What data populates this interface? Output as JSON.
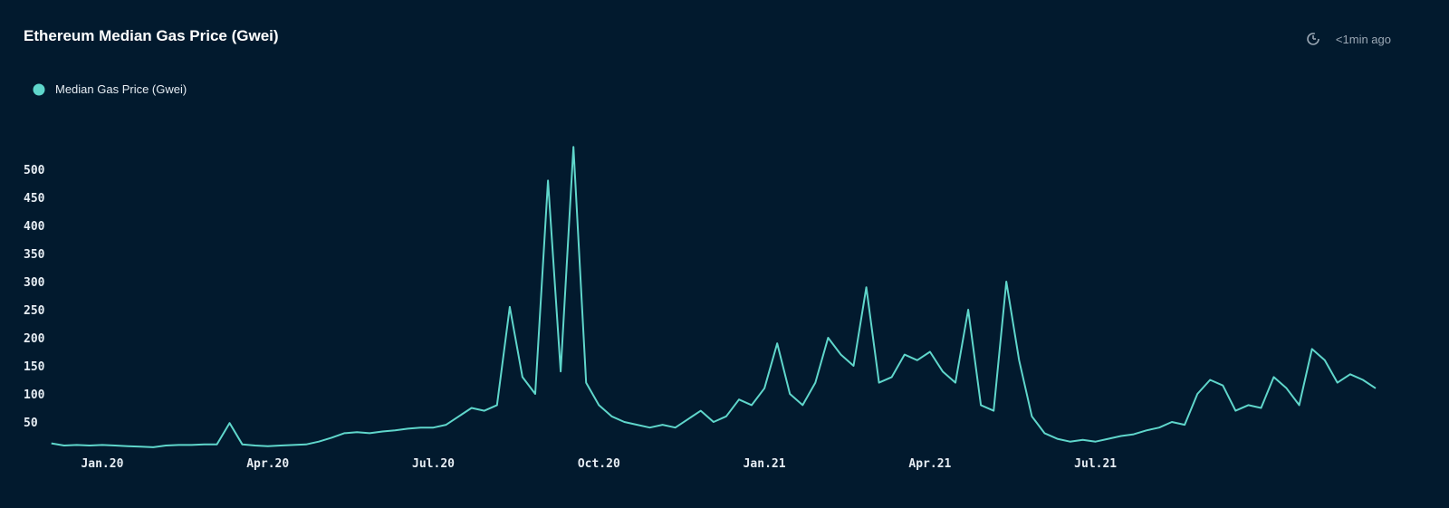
{
  "status": "<1min ago",
  "chart_data": {
    "type": "line",
    "title": "Ethereum Median Gas Price (Gwei)",
    "categories": [
      null,
      null,
      null,
      null,
      "Jan.20",
      null,
      null,
      null,
      null,
      null,
      null,
      null,
      null,
      null,
      null,
      null,
      null,
      "Apr.20",
      null,
      null,
      null,
      null,
      null,
      null,
      null,
      null,
      null,
      null,
      null,
      null,
      "Jul.20",
      null,
      null,
      null,
      null,
      null,
      null,
      null,
      null,
      null,
      null,
      null,
      null,
      "Oct.20",
      null,
      null,
      null,
      null,
      null,
      null,
      null,
      null,
      null,
      null,
      null,
      null,
      "Jan.21",
      null,
      null,
      null,
      null,
      null,
      null,
      null,
      null,
      null,
      null,
      null,
      null,
      "Apr.21",
      null,
      null,
      null,
      null,
      null,
      null,
      null,
      null,
      null,
      null,
      null,
      null,
      "Jul.21",
      null,
      null,
      null,
      null,
      null,
      null,
      null,
      null,
      null,
      null,
      null,
      null,
      null,
      null,
      null,
      null,
      null,
      null,
      null,
      null,
      null,
      null
    ],
    "series": [
      {
        "name": "Median Gas Price (Gwei)",
        "color": "#5fd6cb",
        "values": [
          12,
          8,
          9,
          8,
          9,
          8,
          7,
          6,
          5,
          8,
          9,
          9,
          10,
          10,
          48,
          10,
          8,
          7,
          8,
          9,
          10,
          15,
          22,
          30,
          32,
          30,
          33,
          35,
          38,
          40,
          40,
          45,
          60,
          75,
          70,
          80,
          255,
          130,
          100,
          480,
          140,
          540,
          120,
          80,
          60,
          50,
          45,
          40,
          45,
          40,
          55,
          70,
          50,
          60,
          90,
          80,
          110,
          190,
          100,
          80,
          120,
          200,
          170,
          150,
          290,
          120,
          130,
          170,
          160,
          175,
          140,
          120,
          250,
          80,
          70,
          300,
          160,
          60,
          30,
          20,
          15,
          18,
          15,
          20,
          25,
          28,
          35,
          40,
          50,
          45,
          100,
          125,
          115,
          70,
          80,
          75,
          130,
          110,
          80,
          180,
          160,
          120,
          135,
          125,
          110
        ]
      }
    ],
    "ylim": [
      0,
      550
    ],
    "yticks": [
      50,
      100,
      150,
      200,
      250,
      300,
      350,
      400,
      450,
      500
    ]
  }
}
